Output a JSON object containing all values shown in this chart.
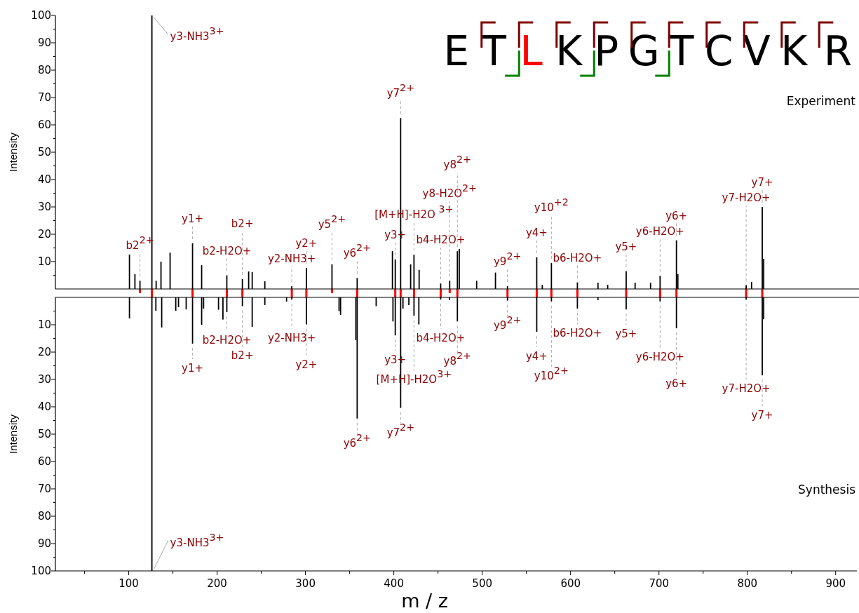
{
  "chart_data": [
    {
      "type": "bar",
      "title": "Experiment",
      "ylabel": "Intensity",
      "xlim": [
        17,
        924
      ],
      "ylim": [
        0,
        100
      ],
      "yticks": [
        {
          "value": 5,
          "label": null
        },
        10,
        {
          "value": 15,
          "label": null
        },
        20,
        {
          "value": 25,
          "label": null
        },
        30,
        {
          "value": 35,
          "label": null
        },
        40,
        {
          "value": 45,
          "label": null
        },
        50,
        {
          "value": 55,
          "label": null
        },
        60,
        {
          "value": 65,
          "label": null
        },
        70,
        {
          "value": 75,
          "label": null
        },
        80,
        {
          "value": 85,
          "label": null
        },
        90,
        {
          "value": 95,
          "label": null
        },
        100
      ],
      "tick_labels": "y",
      "x": [
        100.8,
        107,
        112.7,
        126.2,
        131,
        136.5,
        146.8,
        172.2,
        182.5,
        211,
        228.6,
        235.7,
        239.7,
        254,
        284.5,
        301,
        330,
        358.5,
        398.4,
        401.6,
        407.7,
        419,
        422.8,
        428.6,
        453,
        463.2,
        471.9,
        474,
        493.7,
        515,
        528.6,
        561.7,
        568,
        578.3,
        607.7,
        631,
        642,
        662.9,
        673,
        690.5,
        701.3,
        719.8,
        721.4,
        798.7,
        804.8,
        816.9,
        818.5
      ],
      "series": [
        {
          "color": "#000000",
          "values": [
            12.6,
            5.4,
            3,
            100,
            3,
            10,
            13.3,
            16.7,
            8.7,
            5,
            3.6,
            6.4,
            6.2,
            2.8,
            1,
            7.7,
            9,
            4,
            13.8,
            10.8,
            62.5,
            9,
            12.5,
            7,
            2,
            3,
            13.8,
            14.6,
            3,
            6,
            1,
            11.6,
            1.5,
            9.5,
            2.4,
            2.3,
            1.5,
            6.5,
            2.3,
            2.3,
            4.8,
            17.8,
            5.4,
            1.4,
            2.6,
            30,
            11
          ]
        }
      ],
      "annotations": [
        "E T L K P G T C V K R",
        {
          "text": "y3-NH3$^{3+}$",
          "x": 126.2,
          "y": 100
        },
        {
          "text": "b2$^{2+}$",
          "x": 112.7,
          "y": 3
        },
        {
          "text": "y1+",
          "x": 172.2,
          "y": 16.7
        },
        {
          "text": "b2-H2O+",
          "x": 211,
          "y": 5
        },
        {
          "text": "b2+",
          "x": 228.6,
          "y": 3.6
        },
        {
          "text": "y2-NH3+",
          "x": 284.5,
          "y": 1
        },
        {
          "text": "y2+",
          "x": 301,
          "y": 7.7
        },
        {
          "text": "y5$^{2+}$",
          "x": 330,
          "y": 9
        },
        {
          "text": "y6$^{2+}$",
          "x": 358.5,
          "y": 4
        },
        {
          "text": "y3+",
          "x": 401.6,
          "y": 10.8
        },
        {
          "text": "y7$^{2+}$",
          "x": 407.7,
          "y": 62.5
        },
        {
          "text": "[M+H]-H2O $^{3+}$",
          "x": 422.8,
          "y": 12.5
        },
        {
          "text": "b4-H2O+",
          "x": 453,
          "y": 2
        },
        {
          "text": "y8-H2O$^{2+}$",
          "x": 463.2,
          "y": 3
        },
        {
          "text": "y8$^{2+}$",
          "x": 471.9,
          "y": 13.8
        },
        {
          "text": "y9$^{2+}$",
          "x": 528.6,
          "y": 1
        },
        {
          "text": "y4+",
          "x": 561.7,
          "y": 11.6
        },
        {
          "text": "y10$^{+2}$",
          "x": 578.3,
          "y": 9.5
        },
        {
          "text": "b6-H2O+",
          "x": 607.7,
          "y": 2.4
        },
        {
          "text": "y5+",
          "x": 662.9,
          "y": 6.5
        },
        {
          "text": "y6-H2O+",
          "x": 701.3,
          "y": 4.8
        },
        {
          "text": "y6+",
          "x": 719.8,
          "y": 17.8
        },
        {
          "text": "y7-H2O+",
          "x": 798.7,
          "y": 1.4
        },
        {
          "text": "y7+",
          "x": 816.9,
          "y": 30
        }
      ]
    },
    {
      "type": "bar",
      "title": "Synthesis",
      "ylabel": "Intensity",
      "xlabel": "m / z",
      "xlim": [
        17,
        924
      ],
      "ylim": [
        100,
        0
      ],
      "xticks": [
        {
          "value": 50,
          "label": null
        },
        100,
        {
          "value": 150,
          "label": null
        },
        200,
        {
          "value": 250,
          "label": null
        },
        300,
        {
          "value": 350,
          "label": null
        },
        400,
        {
          "value": 450,
          "label": null
        },
        500,
        {
          "value": 550,
          "label": null
        },
        600,
        {
          "value": 650,
          "label": null
        },
        700,
        {
          "value": 750,
          "label": null
        },
        800,
        {
          "value": 850,
          "label": null
        },
        900
      ],
      "yticks": [
        {
          "value": 5,
          "label": null
        },
        10,
        {
          "value": 15,
          "label": null
        },
        20,
        {
          "value": 25,
          "label": null
        },
        30,
        {
          "value": 35,
          "label": null
        },
        40,
        {
          "value": 45,
          "label": null
        },
        50,
        {
          "value": 55,
          "label": null
        },
        60,
        {
          "value": 65,
          "label": null
        },
        70,
        {
          "value": 75,
          "label": null
        },
        80,
        {
          "value": 85,
          "label": null
        },
        90,
        {
          "value": 95,
          "label": null
        },
        100
      ],
      "x": [
        100.8,
        126.2,
        130.7,
        137.3,
        153.2,
        156.3,
        165,
        172.2,
        182.5,
        184.7,
        201.6,
        206.6,
        211,
        228.6,
        239.7,
        254,
        278.6,
        284.5,
        301,
        338,
        339.7,
        357,
        358.5,
        380,
        399,
        401.6,
        407.7,
        410.3,
        417,
        422.8,
        428.3,
        453,
        463,
        471.9,
        528.6,
        561.7,
        578.3,
        607.7,
        631,
        662.9,
        701.3,
        719.8,
        798.7,
        816.9,
        818.5
      ],
      "series": [
        {
          "color": "#000000",
          "values": [
            7.7,
            100,
            4.9,
            11,
            4.9,
            3.6,
            4.4,
            16.9,
            10,
            4.1,
            4.5,
            8.1,
            5.4,
            3.2,
            10.8,
            2.8,
            1.5,
            0.8,
            9.9,
            5,
            6.4,
            15.6,
            44.3,
            3.2,
            8.8,
            13.9,
            40.4,
            4.1,
            2.8,
            6.7,
            9.9,
            0.8,
            1,
            8.8,
            1.2,
            12.6,
            1.5,
            4.1,
            1,
            4.4,
            1.5,
            11.3,
            0.8,
            28.5,
            8
          ]
        }
      ],
      "annotations": [
        {
          "text": "y3-NH3$^{3+}$",
          "x": 126.2,
          "y": 100
        },
        {
          "text": "y1+",
          "x": 172.2,
          "y": 16.9
        },
        {
          "text": "b2-H2O+",
          "x": 211,
          "y": 5.4
        },
        {
          "text": "b2+",
          "x": 228.6,
          "y": 3.2
        },
        {
          "text": "y2-NH3+",
          "x": 284.5,
          "y": 0.8
        },
        {
          "text": "y2+",
          "x": 301,
          "y": 9.9
        },
        {
          "text": "y6$^{2+}$",
          "x": 358.5,
          "y": 44.3
        },
        {
          "text": "y3+",
          "x": 401.6,
          "y": 13.9
        },
        {
          "text": "y7$^{2+}$",
          "x": 407.7,
          "y": 40.4
        },
        {
          "text": "[M+H]-H2O$^{3+}$",
          "x": 422.8,
          "y": 6.7
        },
        {
          "text": "b4-H2O+",
          "x": 453,
          "y": 0.8
        },
        {
          "text": "y8$^{2+}$",
          "x": 471.9,
          "y": 8.8
        },
        {
          "text": "y9$^{2+}$",
          "x": 528.6,
          "y": 1.2
        },
        {
          "text": "y4+",
          "x": 561.7,
          "y": 12.6
        },
        {
          "text": "y10$^{2+}$",
          "x": 578.3,
          "y": 1.5
        },
        {
          "text": "b6-H2O+",
          "x": 607.7,
          "y": 4.1
        },
        {
          "text": "y5+",
          "x": 662.9,
          "y": 4.4
        },
        {
          "text": "y6-H2O+",
          "x": 701.3,
          "y": 1.5
        },
        {
          "text": "y6+",
          "x": 719.8,
          "y": 11.3
        },
        {
          "text": "y7-H2O+",
          "x": 798.7,
          "y": 0.8
        },
        {
          "text": "y7+",
          "x": 816.9,
          "y": 28.5
        }
      ]
    }
  ]
}
